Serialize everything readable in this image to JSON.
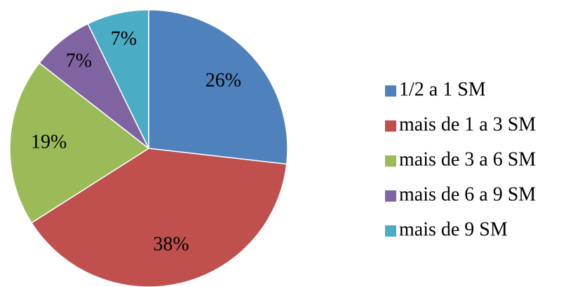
{
  "chart_data": {
    "type": "pie",
    "categories": [
      "1/2 a 1 SM",
      "mais de 1 a 3 SM",
      "mais de 3 a 6 SM",
      "mais de 6 a 9 SM",
      "mais de 9 SM"
    ],
    "values": [
      26,
      38,
      19,
      7,
      7
    ],
    "value_labels": [
      "26%",
      "38%",
      "19%",
      "7%",
      "7%"
    ],
    "colors": [
      "#4f81bd",
      "#c0504d",
      "#9bbb59",
      "#8064a2",
      "#4bacc6"
    ],
    "legend": "right"
  }
}
